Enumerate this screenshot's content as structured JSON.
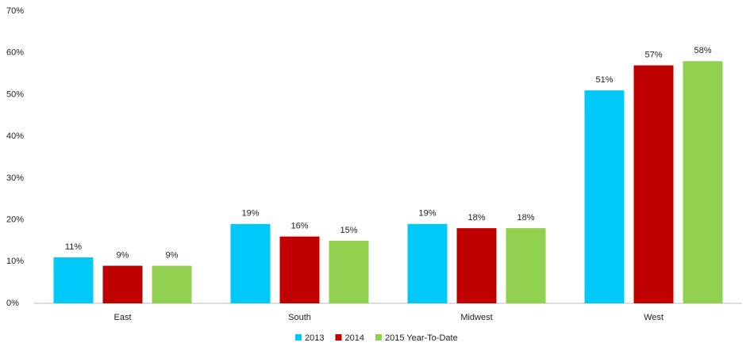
{
  "chart_data": {
    "type": "bar",
    "categories": [
      "East",
      "South",
      "Midwest",
      "West"
    ],
    "series": [
      {
        "name": "2013",
        "color": "#00c8f8",
        "values": [
          11,
          19,
          19,
          51
        ],
        "value_labels": [
          "11%",
          "19%",
          "19%",
          "51%"
        ]
      },
      {
        "name": "2014",
        "color": "#c00000",
        "values": [
          9,
          16,
          18,
          57
        ],
        "value_labels": [
          "9%",
          "16%",
          "18%",
          "57%"
        ]
      },
      {
        "name": "2015 Year-To-Date",
        "color": "#92d050",
        "values": [
          9,
          15,
          18,
          58
        ],
        "value_labels": [
          "9%",
          "15%",
          "18%",
          "58%"
        ]
      }
    ],
    "ylim": [
      0,
      70
    ],
    "yticks": [
      {
        "value": 0,
        "label": "0%"
      },
      {
        "value": 10,
        "label": "10%"
      },
      {
        "value": 20,
        "label": "20%"
      },
      {
        "value": 30,
        "label": "30%"
      },
      {
        "value": 40,
        "label": "40%"
      },
      {
        "value": 50,
        "label": "50%"
      },
      {
        "value": 60,
        "label": "60%"
      },
      {
        "value": 70,
        "label": "70%"
      }
    ],
    "grid": false,
    "legend": "bottom"
  }
}
